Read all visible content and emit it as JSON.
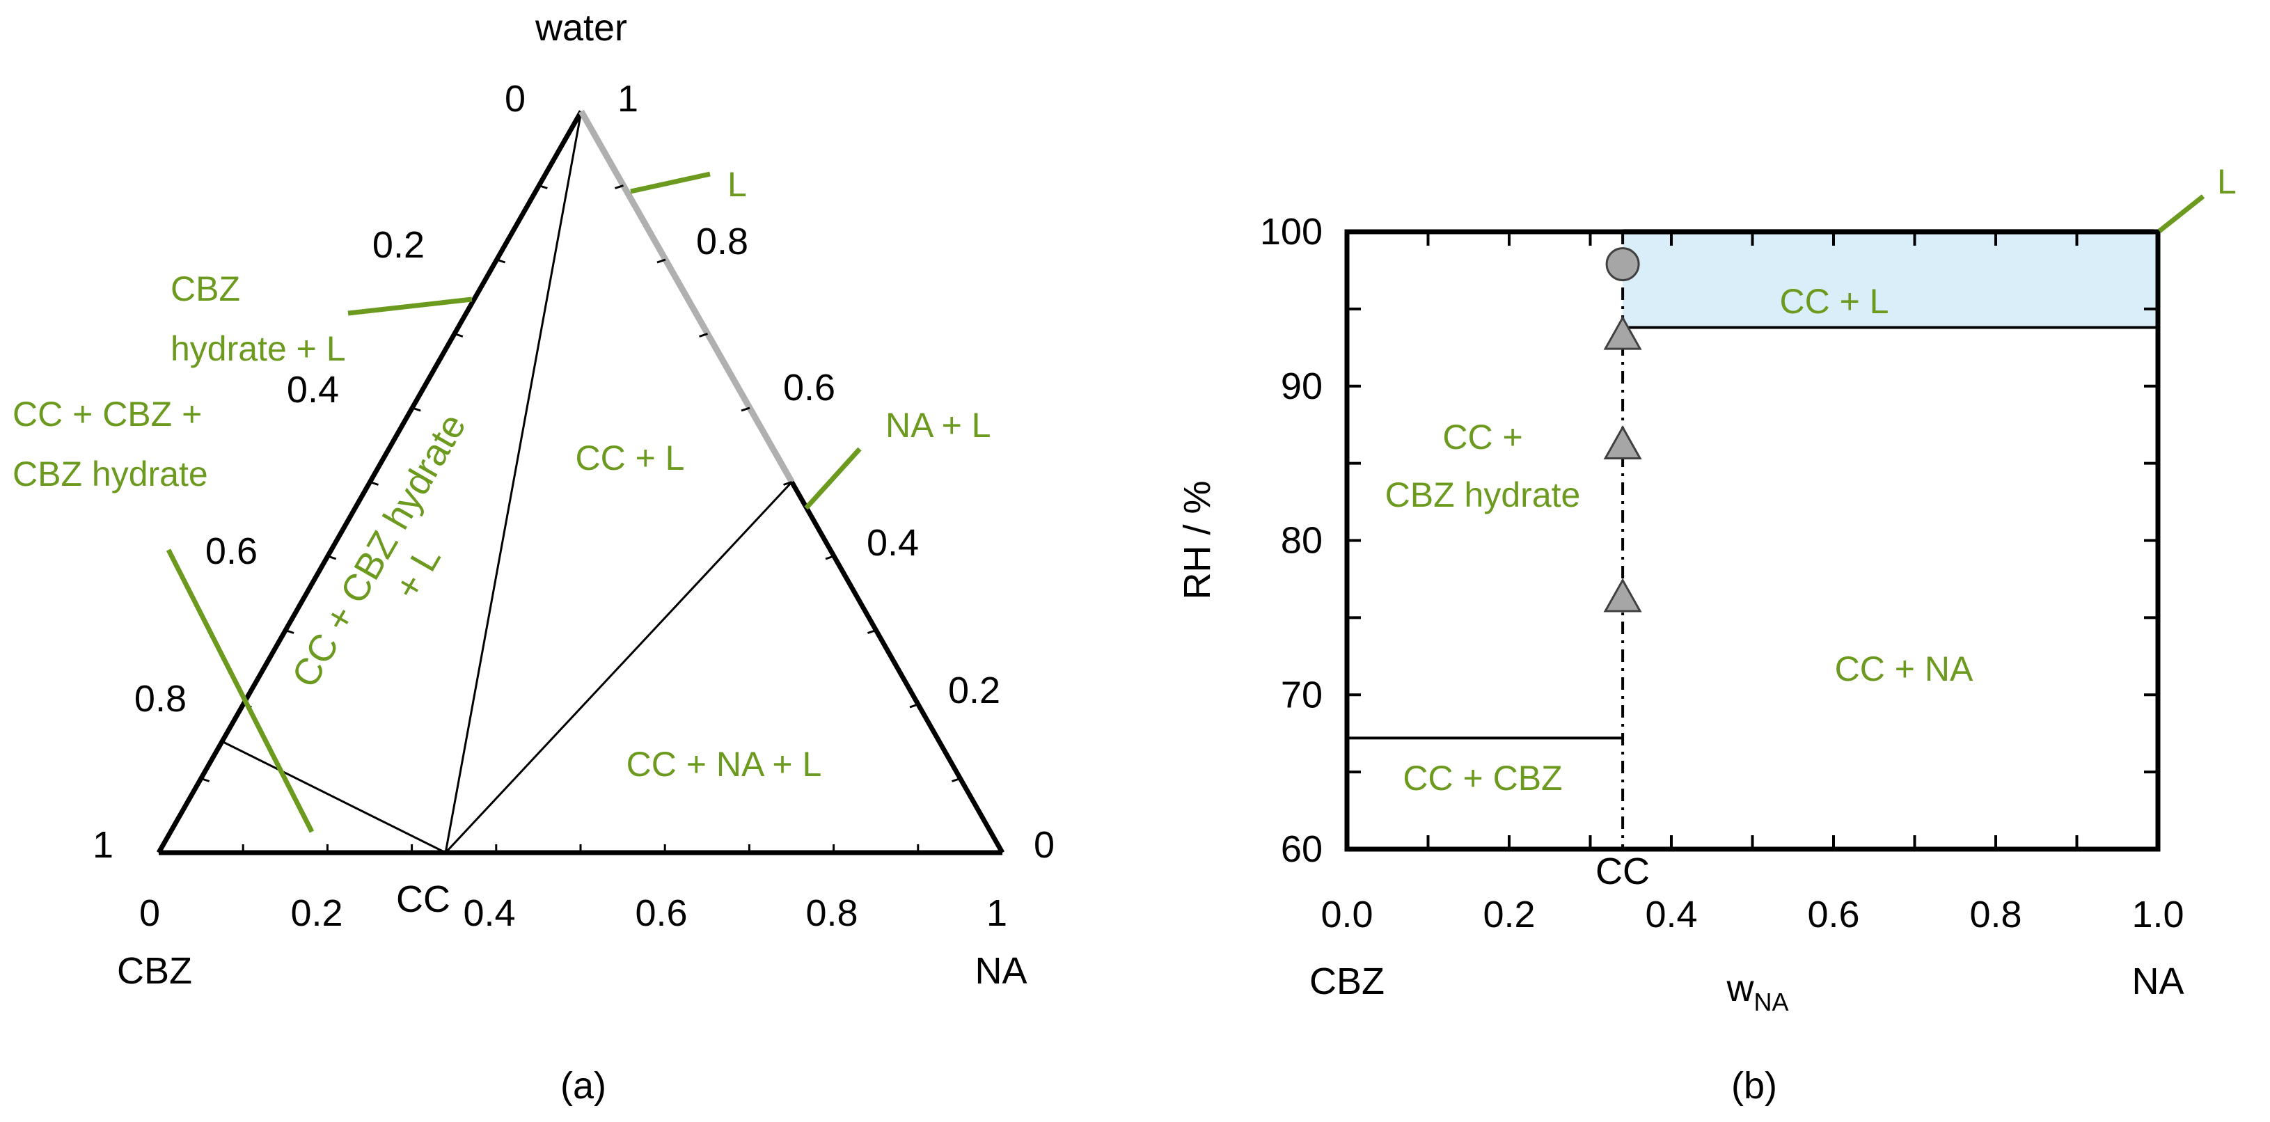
{
  "colors": {
    "label_green": "#6b9a1e",
    "region_fill": "#daeefa",
    "marker_gray": "#a6a6a6",
    "liquid_line": "#b0b0b0"
  },
  "panel_a": {
    "caption": "(a)",
    "vertex_labels": {
      "top": "water",
      "left": "CBZ",
      "right": "NA"
    },
    "regions": {
      "cc_l": "CC + L",
      "cc_na_l": "CC + NA + L",
      "cc_cbzh_l_line1": "CC + CBZ hydrate",
      "cc_cbzh_l_line2": "+ L"
    },
    "callouts": {
      "l": "L",
      "na_l": "NA + L",
      "cbzh_l_line1": "CBZ",
      "cbzh_l_line2": "hydrate + L",
      "cc_cbz_cbzh_line1": "CC + CBZ +",
      "cc_cbz_cbzh_line2": "CBZ hydrate"
    },
    "cc_label": "CC"
  },
  "panel_b": {
    "caption": "(b)",
    "regions": {
      "cc_l": "CC + L",
      "cc_cbzh_line1": "CC +",
      "cc_cbzh_line2": "CBZ hydrate",
      "cc_na": "CC + NA",
      "cc_cbz": "CC + CBZ"
    },
    "callout_l": "L",
    "cc_label": "CC",
    "x_left_label": "CBZ",
    "x_right_label": "NA"
  },
  "chart_data": [
    {
      "type": "ternary",
      "vertices": [
        "water",
        "CBZ",
        "NA"
      ],
      "ticks": [
        "0",
        "0.2",
        "0.4",
        "0.6",
        "0.8",
        "1"
      ],
      "cocrystal_point": {
        "w_NA": 0.34,
        "label": "CC"
      },
      "tie_lines": [
        {
          "from": "CC",
          "to": "water"
        },
        {
          "from": "CC",
          "to": {
            "water": 0.5,
            "NA": 0.5
          }
        },
        {
          "from": "CC",
          "to": {
            "water": 0.15,
            "CBZ": 0.85
          }
        }
      ],
      "liquid_curve": {
        "from": "water",
        "to": {
          "water": 0.5,
          "NA": 0.5
        }
      }
    },
    {
      "type": "line",
      "xlabel_main": "w",
      "xlabel_sub": "NA",
      "ylabel": "RH / %",
      "xlim": [
        0.0,
        1.0
      ],
      "ylim": [
        60,
        100
      ],
      "xticks": [
        "0.0",
        "0.2",
        "0.4",
        "0.6",
        "0.8",
        "1.0"
      ],
      "yticks": [
        "60",
        "70",
        "80",
        "90",
        "100"
      ],
      "cocrystal_x": 0.34,
      "boundaries": [
        {
          "x": [
            0.0,
            1.0
          ],
          "y": [
            100,
            100
          ]
        },
        {
          "x": [
            0.34,
            1.0
          ],
          "y": [
            93.8,
            93.8
          ]
        },
        {
          "x": [
            0.0,
            0.34
          ],
          "y": [
            67.2,
            67.2
          ]
        }
      ],
      "shaded_region": {
        "x": [
          0.34,
          1.0
        ],
        "y": [
          93.8,
          100
        ]
      },
      "markers": [
        {
          "shape": "circle",
          "x": 0.34,
          "y": 97.9
        },
        {
          "shape": "triangle",
          "x": 0.34,
          "y": 93.3
        },
        {
          "shape": "triangle",
          "x": 0.34,
          "y": 86.2
        },
        {
          "shape": "triangle",
          "x": 0.34,
          "y": 76.3
        }
      ]
    }
  ]
}
